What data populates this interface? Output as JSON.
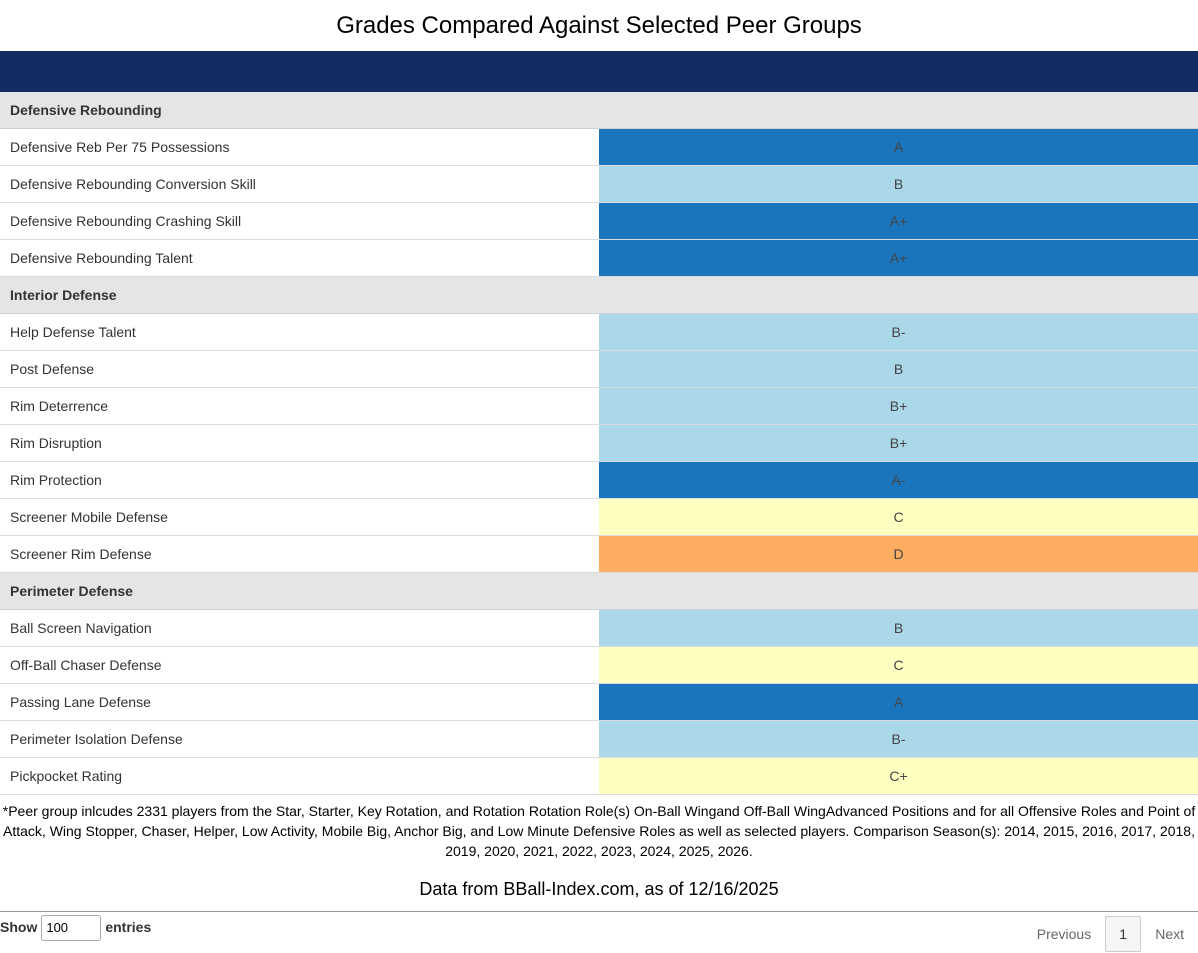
{
  "title": "Grades Compared Against Selected Peer Groups",
  "header": {
    "player_name": "· · ·"
  },
  "colors": {
    "A": "#1a75bc",
    "B": "#abd8e8",
    "C": "#ffffc2",
    "D": "#fdad60",
    "section": "#e5e5e5",
    "header": "#132a63"
  },
  "sections": [
    {
      "name": "Defensive Rebounding",
      "rows": [
        {
          "label": "Defensive Reb Per 75 Possessions",
          "grade": "A",
          "tier": "A"
        },
        {
          "label": "Defensive Rebounding Conversion Skill",
          "grade": "B",
          "tier": "B"
        },
        {
          "label": "Defensive Rebounding Crashing Skill",
          "grade": "A+",
          "tier": "A"
        },
        {
          "label": "Defensive Rebounding Talent",
          "grade": "A+",
          "tier": "A"
        }
      ]
    },
    {
      "name": "Interior Defense",
      "rows": [
        {
          "label": "Help Defense Talent",
          "grade": "B-",
          "tier": "B"
        },
        {
          "label": "Post Defense",
          "grade": "B",
          "tier": "B"
        },
        {
          "label": "Rim Deterrence",
          "grade": "B+",
          "tier": "B"
        },
        {
          "label": "Rim Disruption",
          "grade": "B+",
          "tier": "B"
        },
        {
          "label": "Rim Protection",
          "grade": "A-",
          "tier": "A"
        },
        {
          "label": "Screener Mobile Defense",
          "grade": "C",
          "tier": "C"
        },
        {
          "label": "Screener Rim Defense",
          "grade": "D",
          "tier": "D"
        }
      ]
    },
    {
      "name": "Perimeter Defense",
      "rows": [
        {
          "label": "Ball Screen Navigation",
          "grade": "B",
          "tier": "B"
        },
        {
          "label": "Off-Ball Chaser Defense",
          "grade": "C",
          "tier": "C"
        },
        {
          "label": "Passing Lane Defense",
          "grade": "A",
          "tier": "A"
        },
        {
          "label": "Perimeter Isolation Defense",
          "grade": "B-",
          "tier": "B"
        },
        {
          "label": "Pickpocket Rating",
          "grade": "C+",
          "tier": "C"
        }
      ]
    }
  ],
  "footnote": "*Peer group inlcudes 2331 players from the Star, Starter, Key Rotation, and Rotation Rotation Role(s) On-Ball Wingand Off-Ball WingAdvanced Positions and for all Offensive Roles and Point of Attack, Wing Stopper, Chaser, Helper, Low Activity, Mobile Big, Anchor Big, and Low Minute Defensive Roles as well as selected players. Comparison Season(s): 2014, 2015, 2016, 2017, 2018, 2019, 2020, 2021, 2022, 2023, 2024, 2025, 2026.",
  "source": "Data from BBall-Index.com, as of 12/16/2025",
  "length": {
    "show_label": "Show",
    "value": "100",
    "entries_label": "entries"
  },
  "pager": {
    "previous": "Previous",
    "page": "1",
    "next": "Next"
  }
}
